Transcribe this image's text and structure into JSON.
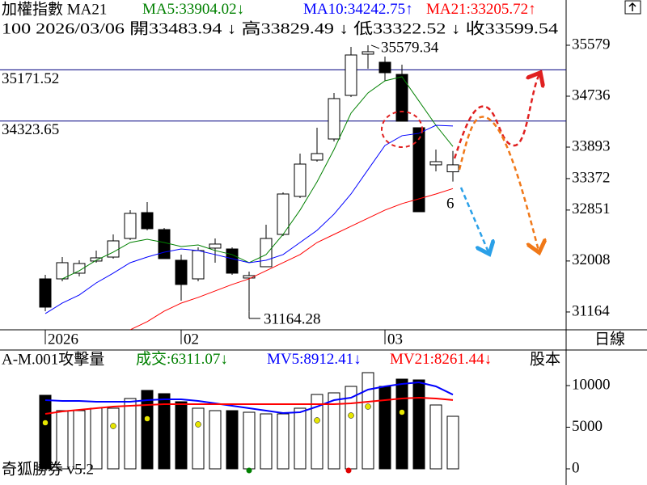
{
  "chart_data": [
    {
      "type": "candlestick",
      "title": "加權指數 MA21",
      "subtitle": "100 2026/03/06 開33483.94 ↓ 高33829.49 ↓ 低33322.52 ↓ 收33599.54",
      "period": "日線",
      "categories": [
        "2026",
        null,
        null,
        null,
        null,
        null,
        null,
        null,
        "02",
        null,
        null,
        null,
        null,
        null,
        null,
        null,
        null,
        null,
        null,
        null,
        "03",
        null,
        null,
        null,
        null
      ],
      "open": [
        31712,
        31712,
        31806,
        32007,
        32073,
        32381,
        32809,
        32528,
        32020,
        31712,
        32221,
        32207,
        31726,
        31913,
        32448,
        33077,
        33679,
        34027,
        34749,
        35432,
        35298,
        35097,
        34214,
        33599,
        33483.94
      ],
      "high": [
        31779,
        32073,
        32020,
        32181,
        32448,
        32849,
        32983,
        32555,
        32114,
        32234,
        32381,
        32234,
        31833,
        32609,
        33144,
        33786,
        34214,
        34790,
        35552,
        35579.34,
        35392,
        35258,
        34214,
        33853,
        33829.49
      ],
      "low": [
        31177,
        31672,
        31753,
        31980,
        32047,
        32354,
        32515,
        32047,
        31351,
        31672,
        31980,
        31779,
        31164.28,
        31913,
        32421,
        33050,
        33652,
        33987,
        34722,
        35191,
        34990,
        34321,
        32823,
        33492,
        33322.52
      ],
      "close": [
        31244,
        31980,
        31966,
        32060,
        32341,
        32796,
        32542,
        32047,
        31619,
        32181,
        32288,
        31806,
        31766,
        32381,
        33117,
        33612,
        33786,
        34696,
        35418,
        35472,
        35124,
        34321,
        32823,
        33652,
        33599.54
      ],
      "series": [
        {
          "name": "MA5:33904.02",
          "arrow": "↓",
          "color": "#008000",
          "values": [
            null,
            31712,
            31846,
            32020,
            32154,
            32314,
            32368,
            32314,
            32247,
            32274,
            32181,
            32114,
            31980,
            32114,
            32448,
            32850,
            33318,
            33853,
            34455,
            34790,
            34990,
            35057,
            34656,
            34254,
            33904
          ]
        },
        {
          "name": "MA10:34242.75",
          "arrow": "↑",
          "color": "#0000ff",
          "values": [
            31137,
            31311,
            31445,
            31645,
            31806,
            31980,
            32073,
            32154,
            32207,
            32181,
            32114,
            32047,
            31980,
            32020,
            32114,
            32314,
            32515,
            32783,
            33117,
            33519,
            33920,
            34081,
            34121,
            34254,
            34243
          ]
        },
        {
          "name": "MA21:33205.72",
          "arrow": "↑",
          "color": "#ff0000",
          "values": [
            null,
            null,
            null,
            null,
            null,
            30870,
            31003,
            31177,
            31311,
            31405,
            31512,
            31619,
            31713,
            31846,
            31980,
            32114,
            32314,
            32448,
            32582,
            32716,
            32850,
            32957,
            33037,
            33117,
            33206
          ]
        }
      ],
      "ylim": [
        30869,
        36328
      ],
      "yticks": [
        35579,
        34736,
        33893,
        33372,
        32851,
        32008,
        31164
      ],
      "hlines": [
        35171.52,
        34323.65
      ],
      "hline_color": "#000080",
      "annotations": [
        {
          "text": "6",
          "color": "#ff0000"
        }
      ]
    },
    {
      "type": "bar",
      "title": "A-M.001攻擊量",
      "series": [
        {
          "kind": "bar",
          "name": "成交:6311.07",
          "arrow": "↓",
          "color": "#008000",
          "values": [
            8835,
            6990,
            6990,
            7282,
            7282,
            8447,
            9417,
            9029,
            8058,
            7282,
            6990,
            6990,
            6796,
            6602,
            6602,
            7282,
            8932,
            9126,
            9903,
            11553,
            9903,
            10777,
            10680,
            7670,
            6311
          ],
          "bar_colors": [
            "#000000",
            "#ffffff",
            "#ffffff",
            "#ffffff",
            "#ffffff",
            "#ffffff",
            "#000000",
            "#000000",
            "#000000",
            "#ffffff",
            "#ffffff",
            "#000000",
            "#ffffff",
            "#ffffff",
            "#ffffff",
            "#ffffff",
            "#ffffff",
            "#ffffff",
            "#ffffff",
            "#ffffff",
            "#000000",
            "#000000",
            "#000000",
            "#ffffff",
            "#ffffff"
          ]
        },
        {
          "kind": "line",
          "name": "MV5:8912.41",
          "arrow": "↓",
          "color": "#0000ff",
          "values": [
            8252,
            8155,
            8155,
            8058,
            8058,
            8058,
            8252,
            8350,
            8350,
            8155,
            7864,
            7573,
            7282,
            6990,
            6699,
            6796,
            7476,
            8252,
            8544,
            9515,
            9903,
            10194,
            10388,
            9903,
            8912
          ]
        },
        {
          "kind": "line",
          "name": "MV21:8261.44",
          "arrow": "↓",
          "color": "#ff0000",
          "values": [
            6602,
            6893,
            7087,
            7282,
            7476,
            7573,
            7670,
            7767,
            7767,
            7767,
            7767,
            7767,
            7767,
            7767,
            7767,
            7767,
            7767,
            7767,
            7864,
            8058,
            8252,
            8447,
            8544,
            8447,
            8261
          ]
        },
        {
          "kind": "dot",
          "color": "#e6e600",
          "values": [
            5534,
            null,
            null,
            null,
            5146,
            null,
            6019,
            null,
            null,
            5340,
            null,
            null,
            null,
            null,
            null,
            null,
            5825,
            null,
            6408,
            7476,
            null,
            6796,
            null,
            null,
            null
          ]
        }
      ],
      "extra_legend": {
        "text": "股本",
        "color": "#ff00ff"
      },
      "ylim": [
        -1942,
        14078
      ],
      "yticks": [
        10000,
        5000,
        0
      ]
    }
  ],
  "footer": "奇狐勝券 v5.2"
}
